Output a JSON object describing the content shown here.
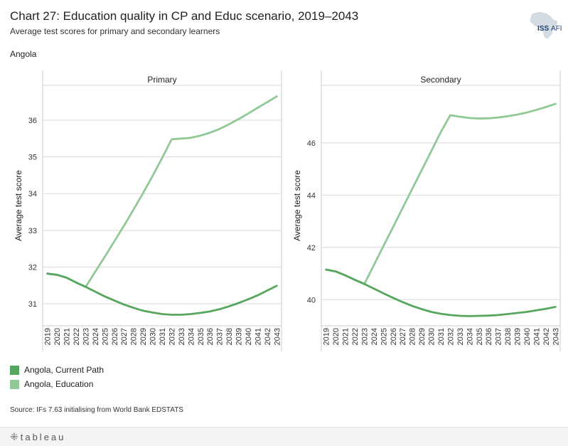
{
  "header": {
    "title": "Chart 27: Education quality in CP and Educ scenario, 2019–2043",
    "subtitle": "Average test scores for primary and secondary learners",
    "country": "Angola",
    "logo_text": "ISS",
    "logo_text_accent": "AFI"
  },
  "legend": {
    "items": [
      {
        "label": "Angola,  Current Path",
        "color": "#57a65e"
      },
      {
        "label": "Angola,  Education",
        "color": "#90c996"
      }
    ]
  },
  "source": "Source: IFs 7.63 initialising from World Bank EDSTATS",
  "footer": {
    "brand": "tableau"
  },
  "colors": {
    "current_path": "#57a65e",
    "education": "#90c996",
    "grid": "#d9d9d9",
    "axis": "#cccccc"
  },
  "chart_data": [
    {
      "type": "line",
      "title": "Primary",
      "xlabel": "",
      "ylabel": "Average test score",
      "x": [
        2019,
        2020,
        2021,
        2022,
        2023,
        2024,
        2025,
        2026,
        2027,
        2028,
        2029,
        2030,
        2031,
        2032,
        2033,
        2034,
        2035,
        2036,
        2037,
        2038,
        2039,
        2040,
        2041,
        2042,
        2043
      ],
      "ylim": [
        30.4,
        36.95
      ],
      "yticks": [
        31,
        32,
        33,
        34,
        35,
        36
      ],
      "series": [
        {
          "name": "Angola,  Current Path",
          "values": [
            31.82,
            31.79,
            31.71,
            31.58,
            31.46,
            31.33,
            31.2,
            31.09,
            30.98,
            30.89,
            30.81,
            30.76,
            30.72,
            30.7,
            30.7,
            30.72,
            30.75,
            30.79,
            30.85,
            30.93,
            31.02,
            31.12,
            31.23,
            31.36,
            31.49
          ]
        },
        {
          "name": "Angola,  Education",
          "values": [
            31.82,
            31.79,
            31.71,
            31.58,
            31.46,
            31.87,
            32.28,
            32.7,
            33.12,
            33.56,
            34.01,
            34.48,
            34.97,
            35.48,
            35.5,
            35.52,
            35.58,
            35.66,
            35.76,
            35.89,
            36.03,
            36.18,
            36.34,
            36.49,
            36.65
          ]
        }
      ]
    },
    {
      "type": "line",
      "title": "Secondary",
      "xlabel": "",
      "ylabel": "Average test score",
      "x": [
        2019,
        2020,
        2021,
        2022,
        2023,
        2024,
        2025,
        2026,
        2027,
        2028,
        2029,
        2030,
        2031,
        2032,
        2033,
        2034,
        2035,
        2036,
        2037,
        2038,
        2039,
        2040,
        2041,
        2042,
        2043
      ],
      "ylim": [
        39.0,
        48.2
      ],
      "yticks": [
        40,
        42,
        44,
        46
      ],
      "series": [
        {
          "name": "Angola,  Current Path",
          "values": [
            41.15,
            41.08,
            40.93,
            40.76,
            40.6,
            40.42,
            40.24,
            40.07,
            39.91,
            39.76,
            39.64,
            39.53,
            39.46,
            39.41,
            39.38,
            39.37,
            39.38,
            39.39,
            39.41,
            39.45,
            39.49,
            39.53,
            39.59,
            39.65,
            39.72
          ]
        },
        {
          "name": "Angola,  Education",
          "values": [
            41.15,
            41.08,
            40.93,
            40.76,
            40.6,
            41.32,
            42.05,
            42.77,
            43.5,
            44.23,
            44.95,
            45.68,
            46.41,
            47.06,
            47.0,
            46.95,
            46.93,
            46.94,
            46.97,
            47.02,
            47.08,
            47.16,
            47.26,
            47.37,
            47.49
          ]
        }
      ]
    }
  ]
}
